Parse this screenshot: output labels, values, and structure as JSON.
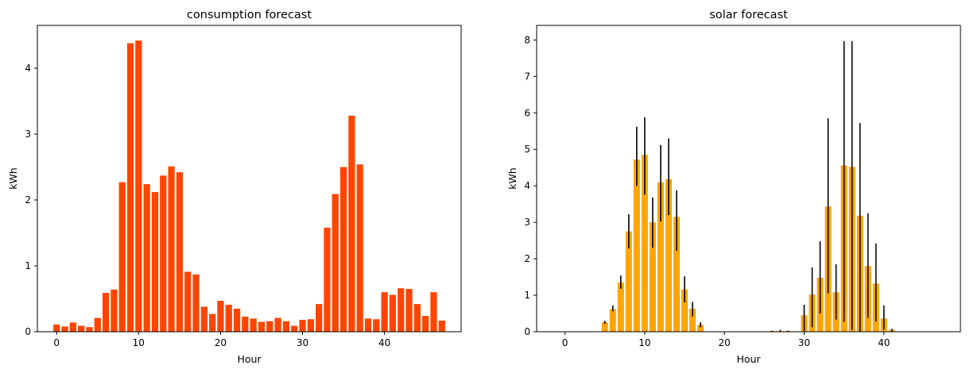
{
  "chart_data": [
    {
      "type": "bar",
      "title": "consumption forecast",
      "xlabel": "Hour",
      "ylabel": "kWh",
      "xlim": [
        -2.35,
        49.35
      ],
      "ylim": [
        0,
        4.65
      ],
      "xticks": [
        0,
        10,
        20,
        30,
        40
      ],
      "yticks": [
        0,
        1,
        2,
        3,
        4
      ],
      "color": "#ff4500",
      "x": [
        0,
        1,
        2,
        3,
        4,
        5,
        6,
        7,
        8,
        9,
        10,
        11,
        12,
        13,
        14,
        15,
        16,
        17,
        18,
        19,
        20,
        21,
        22,
        23,
        24,
        25,
        26,
        27,
        28,
        29,
        30,
        31,
        32,
        33,
        34,
        35,
        36,
        37,
        38,
        39,
        40,
        41,
        42,
        43,
        44,
        45,
        46,
        47
      ],
      "values": [
        0.11,
        0.08,
        0.14,
        0.09,
        0.07,
        0.21,
        0.59,
        0.64,
        2.27,
        4.38,
        4.42,
        2.24,
        2.12,
        2.37,
        2.51,
        2.42,
        0.91,
        0.87,
        0.38,
        0.27,
        0.47,
        0.41,
        0.35,
        0.23,
        0.2,
        0.15,
        0.16,
        0.21,
        0.16,
        0.09,
        0.18,
        0.19,
        0.42,
        1.58,
        2.09,
        2.5,
        3.28,
        2.54,
        0.2,
        0.19,
        0.6,
        0.56,
        0.66,
        0.65,
        0.42,
        0.24,
        0.6,
        0.17
      ]
    },
    {
      "type": "bar",
      "title": "solar forecast",
      "xlabel": "Hour",
      "ylabel": "kWh",
      "xlim": [
        -3.55,
        49.6
      ],
      "ylim": [
        0,
        8.4
      ],
      "xticks": [
        0,
        10,
        20,
        30,
        40
      ],
      "yticks": [
        0,
        1,
        2,
        3,
        4,
        5,
        6,
        7,
        8
      ],
      "color": "#ffa500",
      "error_color": "#000000",
      "x": [
        0,
        1,
        2,
        3,
        4,
        5,
        6,
        7,
        8,
        9,
        10,
        11,
        12,
        13,
        14,
        15,
        16,
        17,
        18,
        19,
        20,
        21,
        22,
        23,
        24,
        25,
        26,
        27,
        28,
        29,
        30,
        31,
        32,
        33,
        34,
        35,
        36,
        37,
        38,
        39,
        40,
        41,
        42,
        43,
        44,
        45,
        46,
        47
      ],
      "values": [
        0,
        0,
        0,
        0,
        0,
        0.26,
        0.62,
        1.35,
        2.75,
        4.72,
        4.85,
        3.0,
        4.1,
        4.18,
        3.15,
        1.16,
        0.63,
        0.19,
        0,
        0,
        0,
        0,
        0,
        0,
        0,
        0,
        0.02,
        0.02,
        0.02,
        0,
        0.45,
        1.02,
        1.48,
        3.43,
        1.08,
        4.56,
        4.52,
        3.18,
        1.8,
        1.32,
        0.36,
        0.05,
        0,
        0,
        0,
        0,
        0,
        0
      ],
      "err_low": [
        0,
        0,
        0,
        0,
        0,
        0.21,
        0.56,
        1.18,
        2.28,
        4.0,
        3.76,
        2.3,
        3.02,
        3.2,
        2.22,
        0.8,
        0.42,
        0.12,
        0,
        0,
        0,
        0,
        0,
        0,
        0,
        0,
        0.01,
        0.01,
        0.01,
        0,
        0.02,
        0.12,
        0.5,
        1.05,
        0.33,
        0.27,
        0.05,
        0.0,
        0.38,
        0.28,
        0.06,
        0.01,
        0,
        0,
        0,
        0,
        0,
        0
      ],
      "err_high": [
        0,
        0,
        0,
        0,
        0,
        0.3,
        0.72,
        1.54,
        3.22,
        5.62,
        5.88,
        3.68,
        5.12,
        5.3,
        3.88,
        1.52,
        0.82,
        0.26,
        0,
        0,
        0,
        0,
        0,
        0,
        0,
        0,
        0.03,
        0.05,
        0.03,
        0,
        0.74,
        1.76,
        2.48,
        5.85,
        1.85,
        7.97,
        7.97,
        5.72,
        3.25,
        2.42,
        0.72,
        0.08,
        0,
        0,
        0,
        0,
        0,
        0
      ]
    }
  ]
}
